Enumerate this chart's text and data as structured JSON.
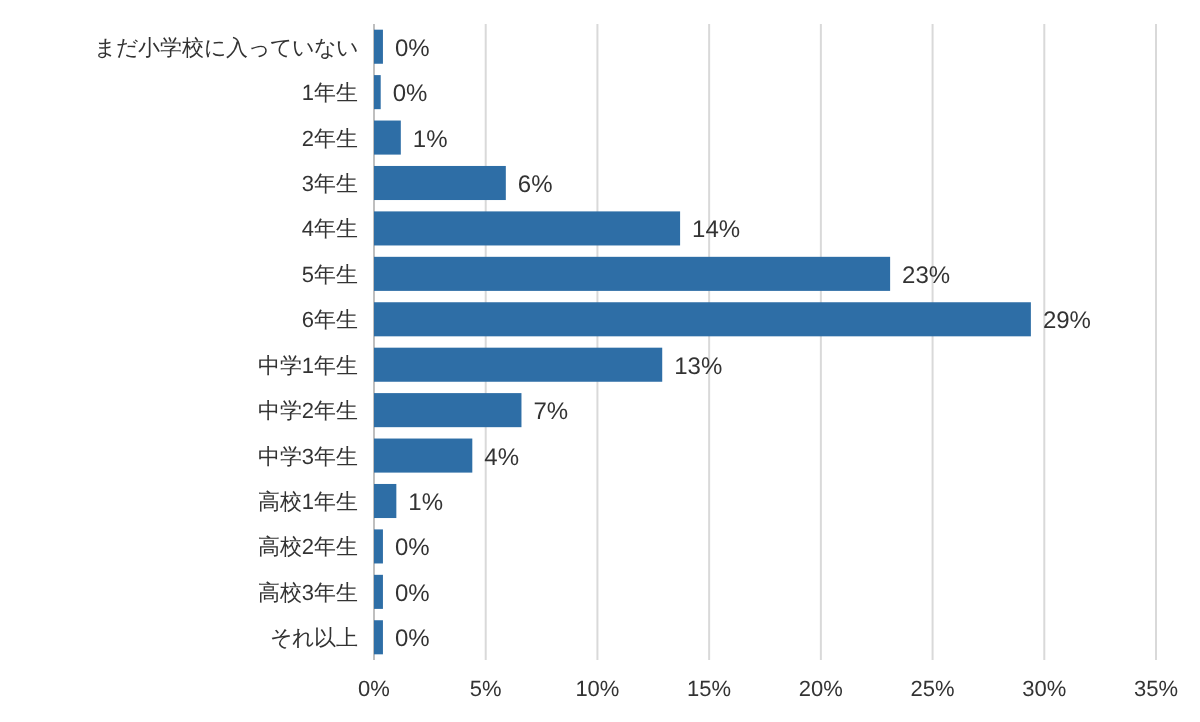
{
  "chart_data": {
    "type": "bar",
    "orientation": "horizontal",
    "categories": [
      "まだ小学校に入っていない",
      "1年生",
      "2年生",
      "3年生",
      "4年生",
      "5年生",
      "6年生",
      "中学1年生",
      "中学2年生",
      "中学3年生",
      "高校1年生",
      "高校2年生",
      "高校3年生",
      "それ以上"
    ],
    "values": [
      0.4,
      0.3,
      1.2,
      5.9,
      13.7,
      23.1,
      29.4,
      12.9,
      6.6,
      4.4,
      1.0,
      0.4,
      0.4,
      0.4
    ],
    "value_labels": [
      "0%",
      "0%",
      "1%",
      "6%",
      "14%",
      "23%",
      "29%",
      "13%",
      "7%",
      "4%",
      "1%",
      "0%",
      "0%",
      "0%"
    ],
    "color": "#2e6ea6",
    "xlim": [
      0,
      35
    ],
    "xticks": [
      {
        "value": 0,
        "label": "0%"
      },
      {
        "value": 5,
        "label": "5%"
      },
      {
        "value": 10,
        "label": "10%"
      },
      {
        "value": 15,
        "label": "15%"
      },
      {
        "value": 20,
        "label": "20%"
      },
      {
        "value": 25,
        "label": "25%"
      },
      {
        "value": 30,
        "label": "30%"
      },
      {
        "value": 35,
        "label": "35%"
      }
    ],
    "grid": "x"
  }
}
